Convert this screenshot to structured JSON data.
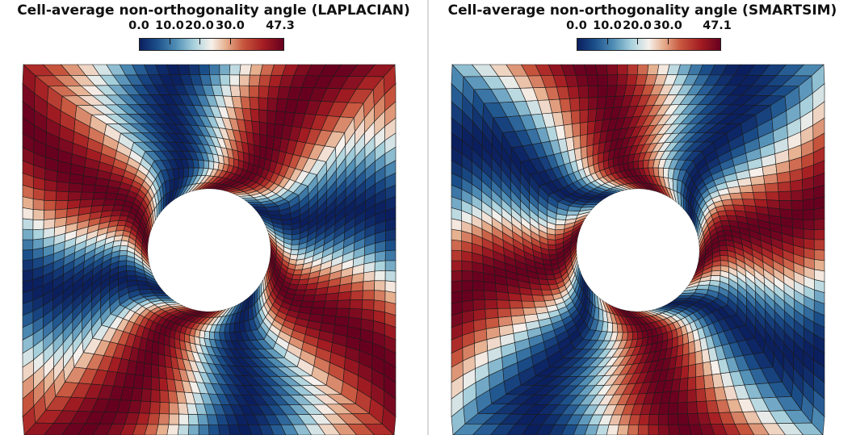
{
  "panels": [
    {
      "title": "Cell-average non-orthogonality angle (LAPLACIAN)",
      "colorbar": {
        "labels": [
          "0.0",
          "10.0",
          "20.0",
          "30.0",
          "47.3"
        ],
        "values": [
          0,
          10,
          20,
          30,
          47.3
        ],
        "max": 47.3
      },
      "twist": 1
    },
    {
      "title": "Cell-average non-orthogonality angle (SMARTSIM)",
      "colorbar": {
        "labels": [
          "0.0",
          "10.0",
          "20.0",
          "30.0",
          "47.1"
        ],
        "values": [
          0,
          10,
          20,
          30,
          47.1
        ],
        "max": 47.1
      },
      "twist": -1
    }
  ],
  "colormap": {
    "name": "RdBu_r",
    "stops": [
      "#0b1f5e",
      "#1b4f8a",
      "#4f8db5",
      "#a9d2dd",
      "#f6f0eb",
      "#e6b08f",
      "#c8573e",
      "#a41d22",
      "#67001f"
    ]
  }
}
